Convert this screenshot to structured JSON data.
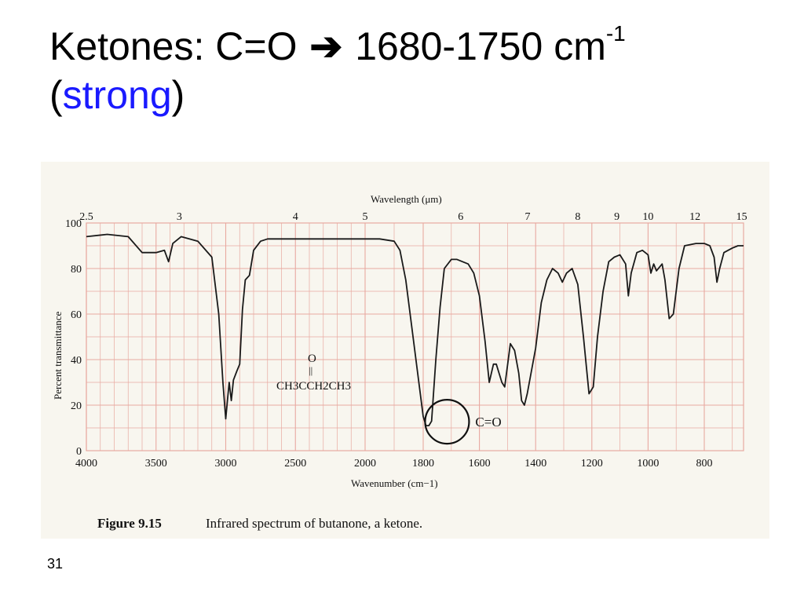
{
  "slide": {
    "title_prefix": "Ketones: C=O",
    "title_arrow": "➔",
    "title_range": "1680-1750 cm",
    "title_superscript": "-1",
    "title_paren_open": "(",
    "title_emphasis": "strong",
    "title_paren_close": ")",
    "emphasis_color": "#1a1aff",
    "slide_number": "31"
  },
  "figure": {
    "caption_label": "Figure 9.15",
    "caption_text": "Infrared spectrum of butanone, a ketone.",
    "molecule_top": "O",
    "molecule_bond": "||",
    "molecule_formula": "CH3CCH2CH3",
    "annotation": "C=O"
  },
  "chart_data": {
    "type": "line",
    "xlabel": "Wavenumber (cm−1)",
    "x2label": "Wavelength (μm)",
    "ylabel": "Percent transmittance",
    "ylim": [
      0,
      100
    ],
    "x_ticks": [
      {
        "label": "4000",
        "value": 4000
      },
      {
        "label": "3500",
        "value": 3500
      },
      {
        "label": "3000",
        "value": 3000
      },
      {
        "label": "2500",
        "value": 2500
      },
      {
        "label": "2000",
        "value": 2000
      },
      {
        "label": "1800",
        "value": 1800
      },
      {
        "label": "1600",
        "value": 1600
      },
      {
        "label": "1400",
        "value": 1400
      },
      {
        "label": "1200",
        "value": 1200
      },
      {
        "label": "1000",
        "value": 1000
      },
      {
        "label": "800",
        "value": 800
      }
    ],
    "wavelength_ticks": [
      {
        "label": "2.5",
        "value": 2.5
      },
      {
        "label": "3",
        "value": 3
      },
      {
        "label": "4",
        "value": 4
      },
      {
        "label": "5",
        "value": 5
      },
      {
        "label": "6",
        "value": 6
      },
      {
        "label": "7",
        "value": 7
      },
      {
        "label": "8",
        "value": 8
      },
      {
        "label": "9",
        "value": 9
      },
      {
        "label": "10",
        "value": 10
      },
      {
        "label": "12",
        "value": 12
      },
      {
        "label": "15",
        "value": 15
      }
    ],
    "y_ticks": [
      {
        "label": "100",
        "value": 100
      },
      {
        "label": "80",
        "value": 80
      },
      {
        "label": "60",
        "value": 60
      },
      {
        "label": "40",
        "value": 40
      },
      {
        "label": "20",
        "value": 20
      },
      {
        "label": "0",
        "value": 0
      }
    ],
    "grid": true,
    "highlight": {
      "label": "C=O",
      "x": 1715,
      "y": 11
    },
    "series": [
      {
        "color": "#1a1a1a",
        "points": [
          [
            4000,
            94
          ],
          [
            3850,
            95
          ],
          [
            3700,
            94
          ],
          [
            3600,
            87
          ],
          [
            3500,
            87
          ],
          [
            3440,
            88
          ],
          [
            3410,
            83
          ],
          [
            3380,
            91
          ],
          [
            3320,
            94
          ],
          [
            3200,
            92
          ],
          [
            3100,
            85
          ],
          [
            3050,
            60
          ],
          [
            3020,
            30
          ],
          [
            3000,
            14
          ],
          [
            2985,
            24
          ],
          [
            2975,
            30
          ],
          [
            2960,
            22
          ],
          [
            2945,
            31
          ],
          [
            2920,
            35
          ],
          [
            2900,
            38
          ],
          [
            2880,
            62
          ],
          [
            2860,
            75
          ],
          [
            2830,
            77
          ],
          [
            2800,
            88
          ],
          [
            2750,
            92
          ],
          [
            2700,
            93
          ],
          [
            2500,
            93
          ],
          [
            2300,
            93
          ],
          [
            2100,
            93
          ],
          [
            1950,
            93
          ],
          [
            1900,
            92
          ],
          [
            1880,
            88
          ],
          [
            1860,
            75
          ],
          [
            1840,
            55
          ],
          [
            1820,
            35
          ],
          [
            1800,
            15
          ],
          [
            1790,
            11
          ],
          [
            1780,
            11
          ],
          [
            1770,
            13
          ],
          [
            1755,
            40
          ],
          [
            1740,
            63
          ],
          [
            1725,
            80
          ],
          [
            1700,
            84
          ],
          [
            1680,
            84
          ],
          [
            1640,
            82
          ],
          [
            1620,
            78
          ],
          [
            1600,
            68
          ],
          [
            1580,
            48
          ],
          [
            1565,
            30
          ],
          [
            1550,
            38
          ],
          [
            1540,
            38
          ],
          [
            1520,
            30
          ],
          [
            1510,
            28
          ],
          [
            1490,
            47
          ],
          [
            1475,
            44
          ],
          [
            1460,
            34
          ],
          [
            1450,
            22
          ],
          [
            1440,
            20
          ],
          [
            1430,
            25
          ],
          [
            1400,
            45
          ],
          [
            1380,
            65
          ],
          [
            1360,
            75
          ],
          [
            1340,
            80
          ],
          [
            1320,
            78
          ],
          [
            1305,
            74
          ],
          [
            1290,
            78
          ],
          [
            1270,
            80
          ],
          [
            1250,
            73
          ],
          [
            1230,
            50
          ],
          [
            1210,
            25
          ],
          [
            1195,
            28
          ],
          [
            1180,
            50
          ],
          [
            1160,
            70
          ],
          [
            1140,
            83
          ],
          [
            1120,
            85
          ],
          [
            1100,
            86
          ],
          [
            1080,
            82
          ],
          [
            1070,
            68
          ],
          [
            1060,
            78
          ],
          [
            1040,
            87
          ],
          [
            1020,
            88
          ],
          [
            1000,
            86
          ],
          [
            990,
            78
          ],
          [
            980,
            82
          ],
          [
            970,
            79
          ],
          [
            950,
            82
          ],
          [
            940,
            75
          ],
          [
            925,
            58
          ],
          [
            910,
            60
          ],
          [
            890,
            80
          ],
          [
            870,
            90
          ],
          [
            830,
            91
          ],
          [
            800,
            91
          ],
          [
            780,
            90
          ],
          [
            765,
            85
          ],
          [
            755,
            74
          ],
          [
            745,
            80
          ],
          [
            730,
            87
          ],
          [
            700,
            89
          ],
          [
            680,
            90
          ],
          [
            660,
            90
          ]
        ]
      }
    ]
  }
}
